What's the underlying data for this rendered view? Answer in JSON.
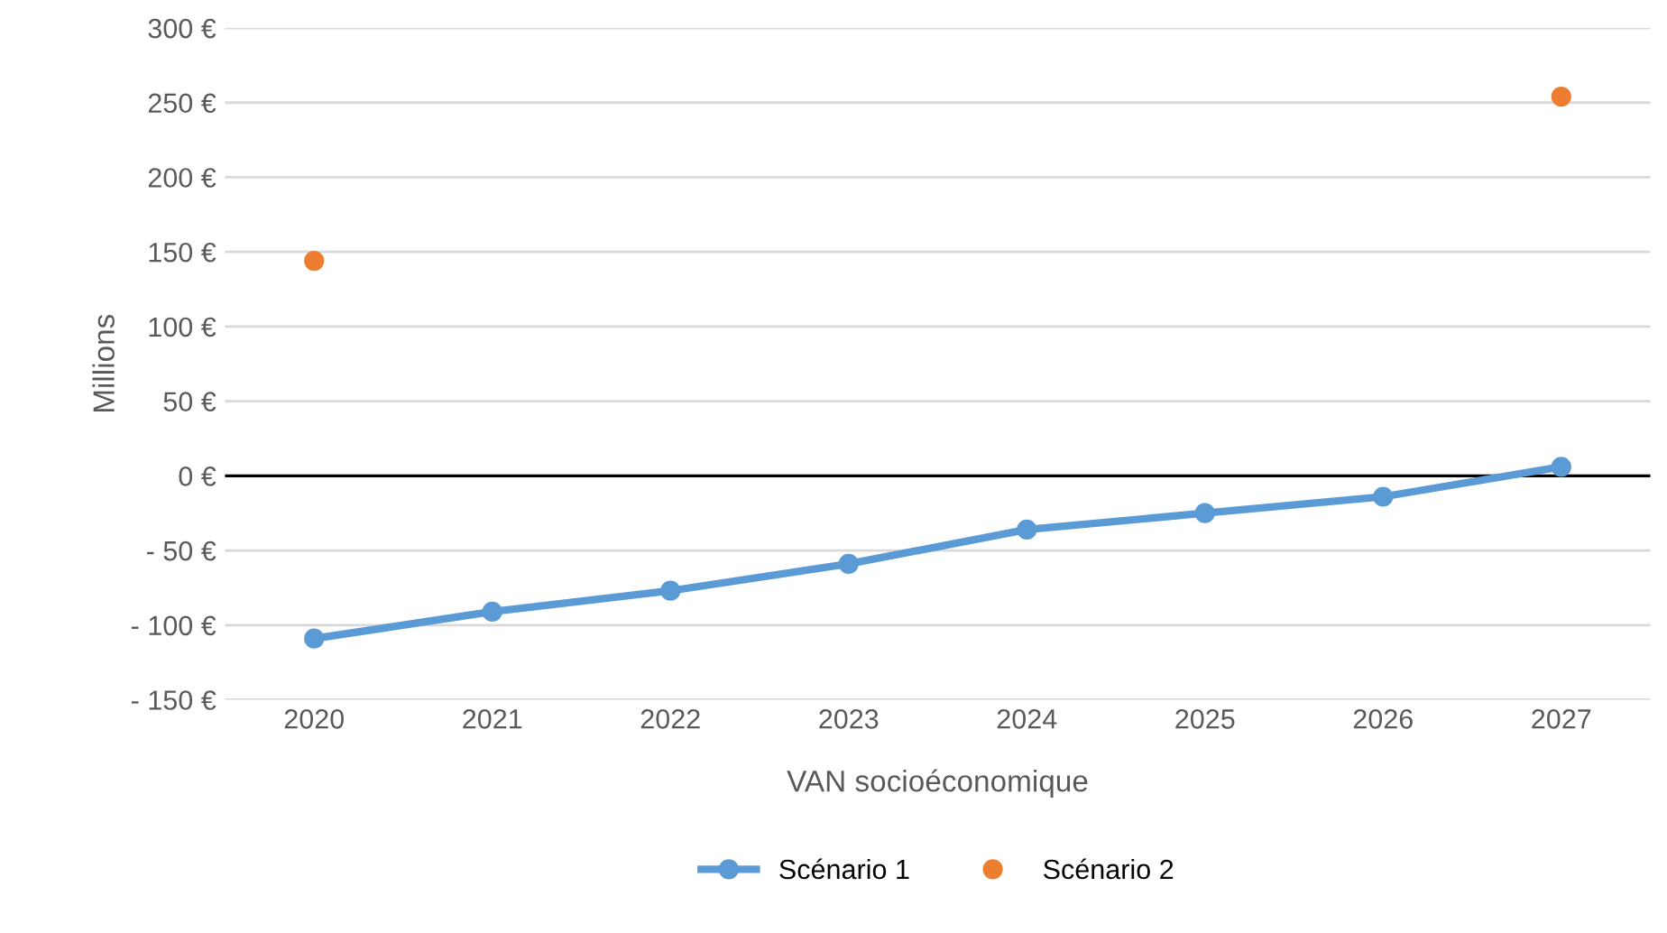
{
  "chart_data": {
    "type": "line",
    "xlabel": "VAN socioéconomique",
    "ylabel": "Millions",
    "categories": [
      "2020",
      "2021",
      "2022",
      "2023",
      "2024",
      "2025",
      "2026",
      "2027"
    ],
    "series": [
      {
        "name": "Scénario 1",
        "color": "#5b9bd5",
        "values": [
          -109,
          -91,
          -77,
          -59,
          -36,
          -25,
          -14,
          6
        ]
      },
      {
        "name": "Scénario 2",
        "type": "scatter",
        "color": "#ed7d31",
        "values": [
          144,
          null,
          null,
          null,
          null,
          null,
          null,
          254
        ]
      }
    ],
    "ylim": [
      -150,
      300
    ],
    "yticks": [
      {
        "value": -150,
        "label": "- 150 €"
      },
      {
        "value": -100,
        "label": "- 100 €"
      },
      {
        "value": -50,
        "label": "- 50 €"
      },
      {
        "value": 0,
        "label": "0 €"
      },
      {
        "value": 50,
        "label": "50 €"
      },
      {
        "value": 100,
        "label": "100 €"
      },
      {
        "value": 150,
        "label": "150 €"
      },
      {
        "value": 200,
        "label": "200 €"
      },
      {
        "value": 250,
        "label": "250 €"
      },
      {
        "value": 300,
        "label": "300 €"
      }
    ],
    "ref_lines": [
      {
        "axis": "y",
        "value": 0,
        "color": "#000000"
      }
    ],
    "grid": "y",
    "legend": "bottom",
    "marker": "circle",
    "line_style": "solid"
  }
}
